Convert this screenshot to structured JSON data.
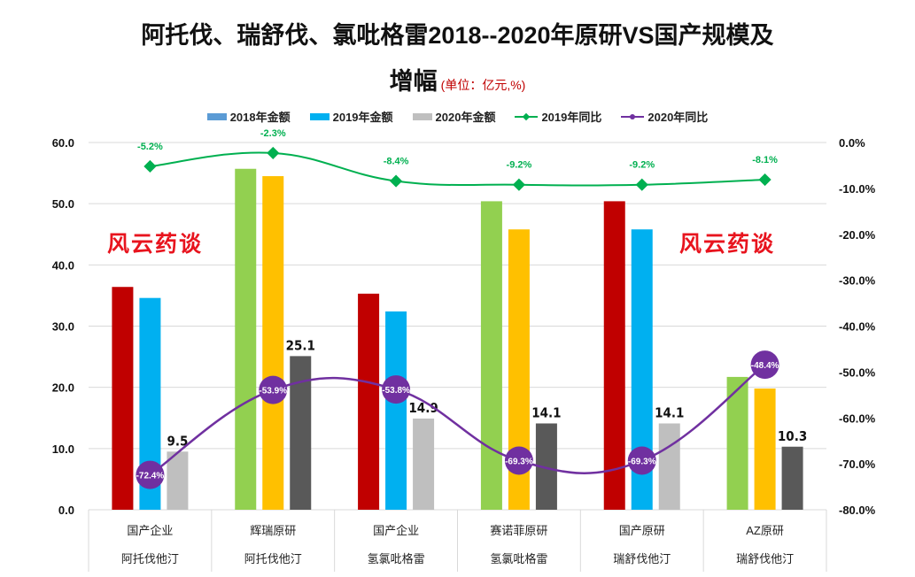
{
  "title_line1": "阿托伐、瑞舒伐、氯吡格雷2018--2020年原研VS国产规模及",
  "title_line2": "增幅",
  "unit_note": "(单位：亿元,%)",
  "watermarks": [
    "风云药谈",
    "风云药谈"
  ],
  "legend": [
    {
      "label": "2018年金额",
      "type": "bar",
      "color": "#5b9bd5"
    },
    {
      "label": "2019年金额",
      "type": "bar",
      "color": "#00b0f0"
    },
    {
      "label": "2020年金额",
      "type": "bar",
      "color": "#bfbfbf"
    },
    {
      "label": "2019年同比",
      "type": "line",
      "color": "#00b050",
      "marker": "diamond"
    },
    {
      "label": "2020年同比",
      "type": "line",
      "color": "#7030a0",
      "marker": "circle"
    }
  ],
  "chart_data": {
    "type": "bar",
    "title": "阿托伐、瑞舒伐、氯吡格雷2018--2020年原研VS国产规模及增幅",
    "subtitle": "(单位：亿元,%)",
    "categories": [
      {
        "company": "国产企业",
        "drug": "阿托伐他汀"
      },
      {
        "company": "辉瑞原研",
        "drug": "阿托伐他汀"
      },
      {
        "company": "国产企业",
        "drug": "氢氯吡格雷"
      },
      {
        "company": "赛诺菲原研",
        "drug": "氢氯吡格雷"
      },
      {
        "company": "国产原研",
        "drug": "瑞舒伐他汀"
      },
      {
        "company": "AZ原研",
        "drug": "瑞舒伐他汀"
      }
    ],
    "series": [
      {
        "name": "2018年金额",
        "axis": "left",
        "kind": "bar",
        "values": [
          36.4,
          55.7,
          35.3,
          50.4,
          50.4,
          21.7
        ],
        "colors": [
          "#c00000",
          "#92d050",
          "#c00000",
          "#92d050",
          "#c00000",
          "#92d050"
        ]
      },
      {
        "name": "2019年金额",
        "axis": "left",
        "kind": "bar",
        "values": [
          34.6,
          54.5,
          32.4,
          45.8,
          45.8,
          19.8
        ],
        "colors": [
          "#00b0f0",
          "#ffc000",
          "#00b0f0",
          "#ffc000",
          "#00b0f0",
          "#ffc000"
        ]
      },
      {
        "name": "2020年金额",
        "axis": "left",
        "kind": "bar",
        "values": [
          9.5,
          25.1,
          14.9,
          14.1,
          14.1,
          10.3
        ],
        "colors": [
          "#bfbfbf",
          "#595959",
          "#bfbfbf",
          "#595959",
          "#bfbfbf",
          "#595959"
        ],
        "labels": [
          "9.5",
          "25.1",
          "14.9",
          "14.1",
          "14.1",
          "10.3"
        ]
      },
      {
        "name": "2019年同比",
        "axis": "right",
        "kind": "line",
        "color": "#00b050",
        "values": [
          -5.2,
          -2.3,
          -8.4,
          -9.2,
          -9.2,
          -8.1
        ],
        "labels": [
          "-5.2%",
          "-2.3%",
          "-8.4%",
          "-9.2%",
          "-9.2%",
          "-8.1%"
        ]
      },
      {
        "name": "2020年同比",
        "axis": "right",
        "kind": "line",
        "color": "#7030a0",
        "values": [
          -72.4,
          -53.9,
          -53.8,
          -69.3,
          -69.3,
          -48.4
        ],
        "labels": [
          "-72.4%",
          "-53.9%",
          "-53.8%",
          "-69.3%",
          "-69.3%",
          "-48.4%"
        ]
      }
    ],
    "ylim": [
      0,
      60
    ],
    "y_ticks": [
      "0.0",
      "10.0",
      "20.0",
      "30.0",
      "40.0",
      "50.0",
      "60.0"
    ],
    "y2lim": [
      -80,
      0
    ],
    "y2_ticks": [
      "-80.0%",
      "-70.0%",
      "-60.0%",
      "-50.0%",
      "-40.0%",
      "-30.0%",
      "-20.0%",
      "-10.0%",
      "0.0%"
    ],
    "xlabel": "",
    "ylabel": "",
    "grid": true,
    "legend_position": "top"
  }
}
